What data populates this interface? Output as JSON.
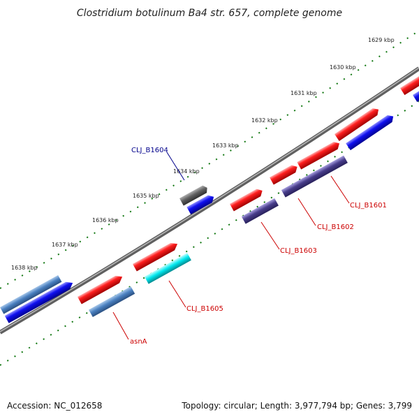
{
  "title": "Clostridium botulinum Ba4 str. 657, complete genome",
  "footer": {
    "accession": "Accession: NC_012658",
    "topology": "Topology: circular; Length: 3,977,794 bp; Genes: 3,799"
  },
  "ticks": [
    "1629 kbp",
    "1630 kbp",
    "1631 kbp",
    "1632 kbp",
    "1633 kbp",
    "1634 kbp",
    "1635 kbp",
    "1636 kbp",
    "1637 kbp",
    "1638 kbp"
  ],
  "genes": [
    "CLJ_B1604",
    "CLJ_B1601",
    "CLJ_B1602",
    "CLJ_B1603",
    "CLJ_B1605",
    "asnA"
  ],
  "colors": {
    "backbone": "#808080",
    "cds": "#ee1111",
    "gene": "#1111ee",
    "rna": "#00e5ee",
    "tick": "#117711"
  }
}
